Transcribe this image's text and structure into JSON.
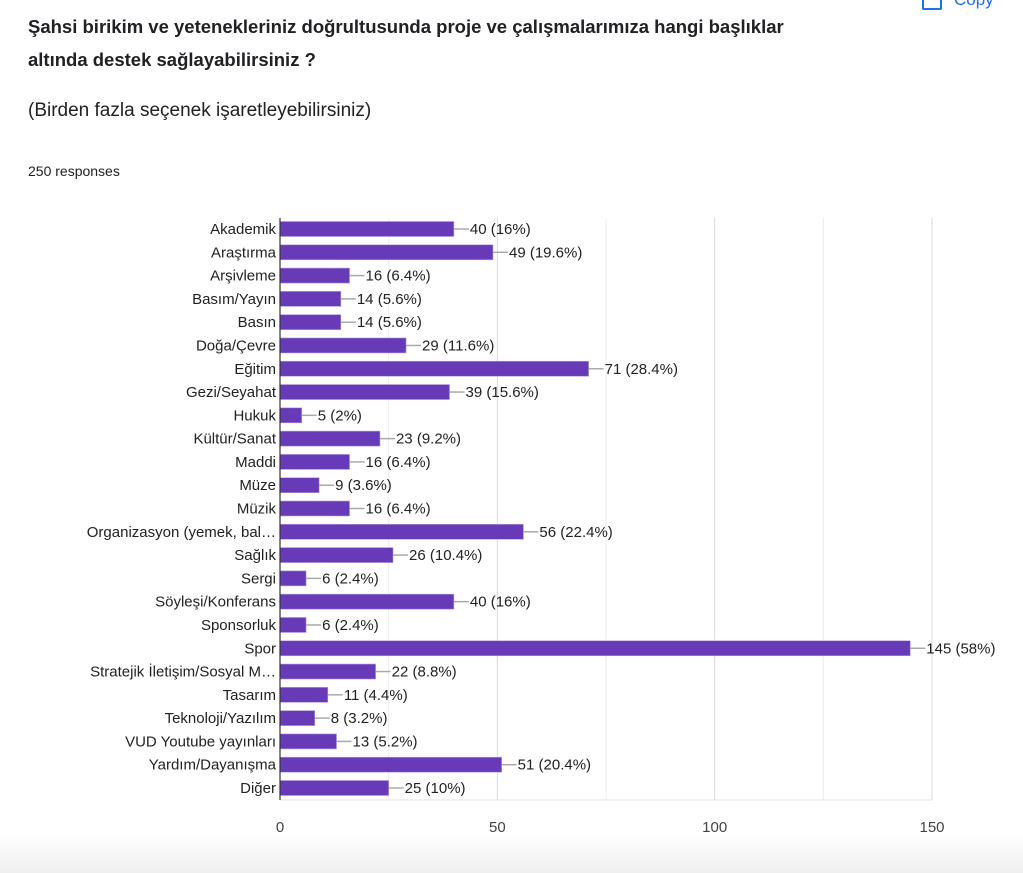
{
  "header": {
    "title": "Şahsi birikim ve yetenekleriniz doğrultusunda proje ve çalışmalarımıza hangi başlıklar altında destek sağlayabilirsiniz ?",
    "subtitle": "(Birden fazla seçenek işaretleyebilirsiniz)",
    "responses": "250 responses",
    "copy_label": "Copy"
  },
  "chart_data": {
    "type": "bar",
    "orientation": "horizontal",
    "categories": [
      "Akademik",
      "Araştırma",
      "Arşivleme",
      "Basım/Yayın",
      "Basın",
      "Doğa/Çevre",
      "Eğitim",
      "Gezi/Seyahat",
      "Hukuk",
      "Kültür/Sanat",
      "Maddi",
      "Müze",
      "Müzik",
      "Organizasyon (yemek, bal…",
      "Sağlık",
      "Sergi",
      "Söyleşi/Konferans",
      "Sponsorluk",
      "Spor",
      "Stratejik İletişim/Sosyal M…",
      "Tasarım",
      "Teknoloji/Yazılım",
      "VUD Youtube yayınları",
      "Yardım/Dayanışma",
      "Diğer"
    ],
    "values": [
      40,
      49,
      16,
      14,
      14,
      29,
      71,
      39,
      5,
      23,
      16,
      9,
      16,
      56,
      26,
      6,
      40,
      6,
      145,
      22,
      11,
      8,
      13,
      51,
      25
    ],
    "labels": [
      "40 (16%)",
      "49 (19.6%)",
      "16 (6.4%)",
      "14 (5.6%)",
      "14 (5.6%)",
      "29 (11.6%)",
      "71 (28.4%)",
      "39 (15.6%)",
      "5 (2%)",
      "23 (9.2%)",
      "16 (6.4%)",
      "9 (3.6%)",
      "16 (6.4%)",
      "56 (22.4%)",
      "26 (10.4%)",
      "6 (2.4%)",
      "40 (16%)",
      "6 (2.4%)",
      "145 (58%)",
      "22 (8.8%)",
      "11 (4.4%)",
      "8 (3.2%)",
      "13 (5.2%)",
      "51 (20.4%)",
      "25 (10%)"
    ],
    "xticks": [
      "0",
      "50",
      "100",
      "150"
    ],
    "xlim": [
      0,
      150
    ],
    "grid": true,
    "bar_color": "#673ab7"
  }
}
